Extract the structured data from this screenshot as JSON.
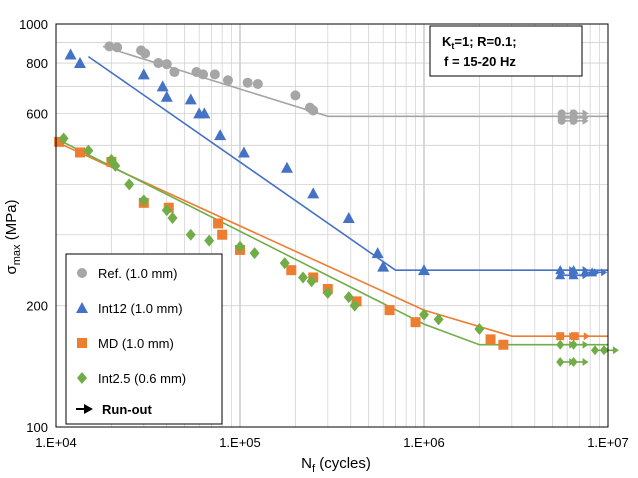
{
  "chart_data": {
    "type": "scatter",
    "xlabel": "N",
    "xlabel_sub": "f",
    "xlabel_suffix": " (cycles)",
    "ylabel": "σ",
    "ylabel_sub": "max",
    "ylabel_suffix": " (MPa)",
    "x_scale": "log",
    "y_scale": "log",
    "xlim": [
      10000,
      10000000
    ],
    "ylim": [
      100,
      1000
    ],
    "grid": true,
    "legend_position": "bottom-left",
    "x_tick_labels": [
      "1.E+04",
      "1.E+05",
      "1.E+06",
      "1.E+07"
    ],
    "y_tick_labels": [
      "100",
      "200",
      "600",
      "800",
      "1000"
    ],
    "y_tick_values": [
      100,
      200,
      600,
      800,
      1000
    ],
    "conditions": {
      "line1": "K",
      "line1_sub": "t",
      "line1_rest": "=1; R=0.1;",
      "line2": "f = 15-20 Hz"
    },
    "runout_label": "Run-out",
    "series": [
      {
        "name": "Ref. (1.0 mm)",
        "color": "#a6a6a6",
        "marker": "circle",
        "points": [
          [
            19500,
            880
          ],
          [
            21500,
            875
          ],
          [
            29000,
            860
          ],
          [
            30500,
            845
          ],
          [
            36000,
            800
          ],
          [
            40000,
            795
          ],
          [
            44000,
            760
          ],
          [
            58000,
            760
          ],
          [
            63000,
            750
          ],
          [
            73000,
            750
          ],
          [
            86000,
            725
          ],
          [
            110000,
            715
          ],
          [
            125000,
            710
          ],
          [
            200000,
            665
          ],
          [
            240000,
            620
          ],
          [
            250000,
            610
          ]
        ],
        "fit": [
          [
            18000,
            880
          ],
          [
            300000,
            590
          ],
          [
            10000000,
            590
          ]
        ],
        "runouts": [
          [
            5600000,
            600
          ],
          [
            6500000,
            600
          ],
          [
            5600000,
            585
          ],
          [
            6500000,
            585
          ],
          [
            5600000,
            575
          ],
          [
            6500000,
            575
          ]
        ]
      },
      {
        "name": "Int12 (1.0 mm)",
        "color": "#4472c4",
        "marker": "triangle",
        "points": [
          [
            12000,
            840
          ],
          [
            13500,
            800
          ],
          [
            30000,
            750
          ],
          [
            38000,
            700
          ],
          [
            40000,
            660
          ],
          [
            54000,
            650
          ],
          [
            60000,
            600
          ],
          [
            64000,
            600
          ],
          [
            78000,
            530
          ],
          [
            105000,
            480
          ],
          [
            180000,
            440
          ],
          [
            250000,
            380
          ],
          [
            390000,
            330
          ],
          [
            560000,
            270
          ],
          [
            600000,
            250
          ],
          [
            1000000,
            245
          ]
        ],
        "fit": [
          [
            15000,
            830
          ],
          [
            700000,
            245
          ],
          [
            10000000,
            245
          ]
        ],
        "runouts": [
          [
            5500000,
            245
          ],
          [
            6500000,
            245
          ],
          [
            7500000,
            242
          ],
          [
            8200000,
            242
          ],
          [
            5500000,
            238
          ],
          [
            6500000,
            238
          ]
        ]
      },
      {
        "name": "MD (1.0 mm)",
        "color": "#ed7d31",
        "marker": "square",
        "points": [
          [
            10400,
            510
          ],
          [
            13500,
            480
          ],
          [
            20000,
            455
          ],
          [
            30000,
            360
          ],
          [
            41000,
            350
          ],
          [
            76000,
            320
          ],
          [
            80000,
            300
          ],
          [
            100000,
            275
          ],
          [
            190000,
            245
          ],
          [
            250000,
            235
          ],
          [
            300000,
            220
          ],
          [
            430000,
            205
          ],
          [
            650000,
            195
          ],
          [
            900000,
            182
          ],
          [
            2300000,
            165
          ],
          [
            2700000,
            160
          ]
        ],
        "fit": [
          [
            10000,
            510
          ],
          [
            1000000,
            195
          ],
          [
            3000000,
            168
          ],
          [
            10000000,
            168
          ]
        ],
        "runouts": [
          [
            5500000,
            168
          ],
          [
            6600000,
            168
          ]
        ]
      },
      {
        "name": "Int2.5 (0.6 mm)",
        "color": "#70ad47",
        "marker": "diamond",
        "points": [
          [
            11000,
            520
          ],
          [
            15000,
            485
          ],
          [
            20000,
            460
          ],
          [
            21000,
            445
          ],
          [
            25000,
            400
          ],
          [
            30000,
            365
          ],
          [
            40000,
            345
          ],
          [
            43000,
            330
          ],
          [
            54000,
            300
          ],
          [
            68000,
            290
          ],
          [
            100000,
            280
          ],
          [
            120000,
            270
          ],
          [
            175000,
            255
          ],
          [
            220000,
            235
          ],
          [
            245000,
            230
          ],
          [
            300000,
            215
          ],
          [
            390000,
            210
          ],
          [
            420000,
            200
          ],
          [
            1000000,
            190
          ],
          [
            1200000,
            185
          ],
          [
            2000000,
            175
          ]
        ],
        "fit": [
          [
            10000,
            520
          ],
          [
            1000000,
            180
          ],
          [
            2000000,
            160
          ],
          [
            10000000,
            160
          ]
        ],
        "runouts": [
          [
            5500000,
            160
          ],
          [
            6500000,
            160
          ],
          [
            8500000,
            155
          ],
          [
            9500000,
            155
          ],
          [
            5500000,
            145
          ],
          [
            6500000,
            145
          ]
        ]
      }
    ]
  }
}
